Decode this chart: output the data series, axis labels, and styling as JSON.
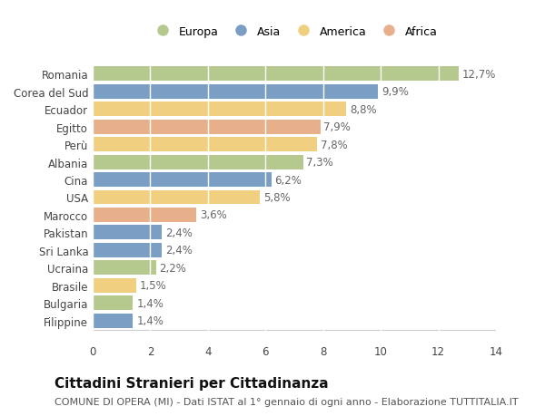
{
  "categories": [
    "Romania",
    "Corea del Sud",
    "Ecuador",
    "Egitto",
    "Perù",
    "Albania",
    "Cina",
    "USA",
    "Marocco",
    "Pakistan",
    "Sri Lanka",
    "Ucraina",
    "Brasile",
    "Bulgaria",
    "Filippine"
  ],
  "values": [
    12.7,
    9.9,
    8.8,
    7.9,
    7.8,
    7.3,
    6.2,
    5.8,
    3.6,
    2.4,
    2.4,
    2.2,
    1.5,
    1.4,
    1.4
  ],
  "value_labels": [
    "12,7%",
    "9,9%",
    "8,8%",
    "7,9%",
    "7,8%",
    "7,3%",
    "6,2%",
    "5,8%",
    "3,6%",
    "2,4%",
    "2,4%",
    "2,2%",
    "1,5%",
    "1,4%",
    "1,4%"
  ],
  "continents": [
    "Europa",
    "Asia",
    "America",
    "Africa",
    "America",
    "Europa",
    "Asia",
    "America",
    "Africa",
    "Asia",
    "Asia",
    "Europa",
    "America",
    "Europa",
    "Asia"
  ],
  "continent_colors": {
    "Europa": "#b5c98e",
    "Asia": "#7b9ec4",
    "America": "#f0d080",
    "Africa": "#e8b08a"
  },
  "legend_order": [
    "Europa",
    "Asia",
    "America",
    "Africa"
  ],
  "xlim": [
    0,
    14
  ],
  "xticks": [
    0,
    2,
    4,
    6,
    8,
    10,
    12,
    14
  ],
  "title": "Cittadini Stranieri per Cittadinanza",
  "subtitle": "COMUNE DI OPERA (MI) - Dati ISTAT al 1° gennaio di ogni anno - Elaborazione TUTTITALIA.IT",
  "background_color": "#ffffff",
  "bar_height": 0.82,
  "title_fontsize": 11,
  "subtitle_fontsize": 8,
  "label_fontsize": 9,
  "tick_fontsize": 8.5,
  "value_fontsize": 8.5
}
